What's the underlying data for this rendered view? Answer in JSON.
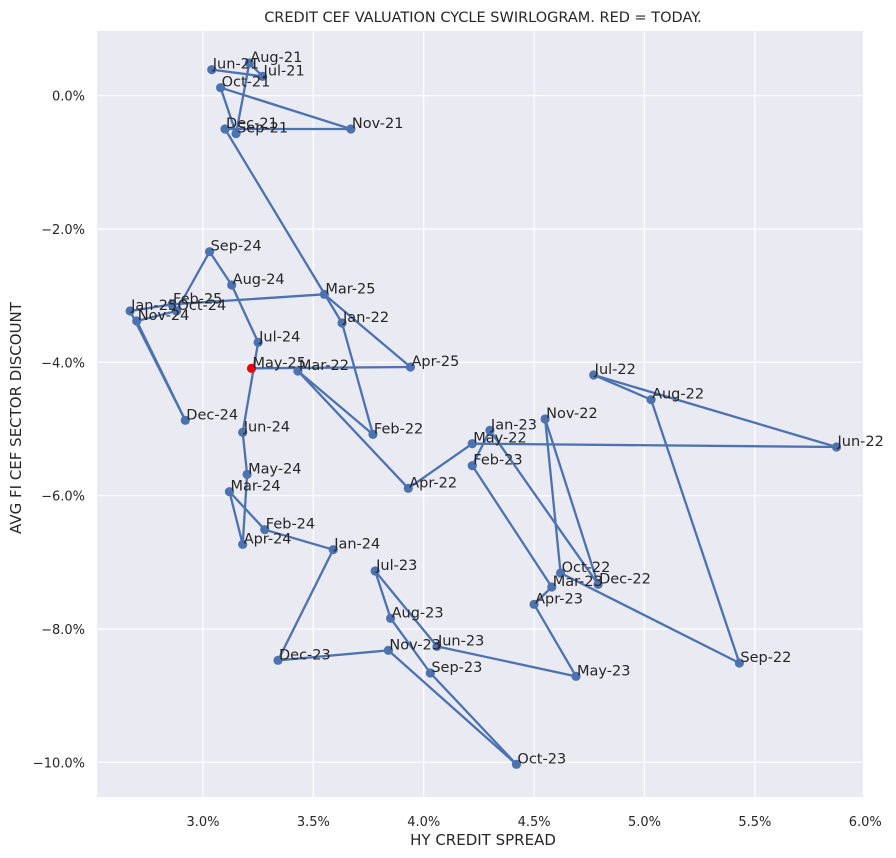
{
  "chart_data": {
    "type": "scatter",
    "title": "CREDIT CEF VALUATION CYCLE SWIRLOGRAM. RED = TODAY.",
    "xlabel": "HY CREDIT SPREAD",
    "ylabel": "AVG FI CEF SECTOR DISCOUNT",
    "xlim": [
      0.0252,
      0.0599
    ],
    "ylim": [
      -0.1052,
      0.0097
    ],
    "x_ticks": [
      0.03,
      0.035,
      0.04,
      0.045,
      0.05,
      0.055,
      0.06
    ],
    "x_tick_labels": [
      "3.0%",
      "3.5%",
      "4.0%",
      "4.5%",
      "5.0%",
      "5.5%",
      "6.0%"
    ],
    "y_ticks": [
      0.0,
      -0.02,
      -0.04,
      -0.06,
      -0.08,
      -0.1
    ],
    "y_tick_labels": [
      "0.0%",
      "−2.0%",
      "−4.0%",
      "−6.0%",
      "−8.0%",
      "−10.0%"
    ],
    "grid": true,
    "series_color": "#4c72b0",
    "highlight_color": "#e8000b",
    "background_color": "#eaeaf2",
    "points": [
      {
        "label": "Jun-21",
        "x": 0.0304,
        "y": 0.0039
      },
      {
        "label": "Jul-21",
        "x": 0.0327,
        "y": 0.0029
      },
      {
        "label": "Aug-21",
        "x": 0.0321,
        "y": 0.0049
      },
      {
        "label": "Sep-21",
        "x": 0.0315,
        "y": -0.0057
      },
      {
        "label": "Oct-21",
        "x": 0.0308,
        "y": 0.0012
      },
      {
        "label": "Nov-21",
        "x": 0.0367,
        "y": -0.005
      },
      {
        "label": "Dec-21",
        "x": 0.031,
        "y": -0.005
      },
      {
        "label": "Jan-22",
        "x": 0.0363,
        "y": -0.0341
      },
      {
        "label": "Feb-22",
        "x": 0.0377,
        "y": -0.0508
      },
      {
        "label": "Mar-22",
        "x": 0.0343,
        "y": -0.0413
      },
      {
        "label": "Apr-22",
        "x": 0.0393,
        "y": -0.0589
      },
      {
        "label": "May-22",
        "x": 0.0422,
        "y": -0.0522
      },
      {
        "label": "Jun-22",
        "x": 0.0587,
        "y": -0.0527
      },
      {
        "label": "Jul-22",
        "x": 0.0477,
        "y": -0.0419
      },
      {
        "label": "Aug-22",
        "x": 0.0503,
        "y": -0.0456
      },
      {
        "label": "Sep-22",
        "x": 0.0543,
        "y": -0.0851
      },
      {
        "label": "Oct-22",
        "x": 0.0462,
        "y": -0.0716
      },
      {
        "label": "Nov-22",
        "x": 0.0455,
        "y": -0.0485
      },
      {
        "label": "Dec-22",
        "x": 0.0479,
        "y": -0.0733
      },
      {
        "label": "Jan-23",
        "x": 0.043,
        "y": -0.0502
      },
      {
        "label": "Feb-23",
        "x": 0.0422,
        "y": -0.0555
      },
      {
        "label": "Mar-23",
        "x": 0.0458,
        "y": -0.0737
      },
      {
        "label": "Apr-23",
        "x": 0.045,
        "y": -0.0763
      },
      {
        "label": "May-23",
        "x": 0.0469,
        "y": -0.0871
      },
      {
        "label": "Jun-23",
        "x": 0.0406,
        "y": -0.0826
      },
      {
        "label": "Jul-23",
        "x": 0.0378,
        "y": -0.0713
      },
      {
        "label": "Aug-23",
        "x": 0.0385,
        "y": -0.0784
      },
      {
        "label": "Sep-23",
        "x": 0.0403,
        "y": -0.0866
      },
      {
        "label": "Oct-23",
        "x": 0.0442,
        "y": -0.1003
      },
      {
        "label": "Nov-23",
        "x": 0.0384,
        "y": -0.0832
      },
      {
        "label": "Dec-23",
        "x": 0.0334,
        "y": -0.0847
      },
      {
        "label": "Jan-24",
        "x": 0.0359,
        "y": -0.0681
      },
      {
        "label": "Feb-24",
        "x": 0.0328,
        "y": -0.0651
      },
      {
        "label": "Mar-24",
        "x": 0.0312,
        "y": -0.0594
      },
      {
        "label": "Apr-24",
        "x": 0.0318,
        "y": -0.0673
      },
      {
        "label": "May-24",
        "x": 0.032,
        "y": -0.0568
      },
      {
        "label": "Jun-24",
        "x": 0.0318,
        "y": -0.0505
      },
      {
        "label": "Jul-24",
        "x": 0.0325,
        "y": -0.037
      },
      {
        "label": "Aug-24",
        "x": 0.0313,
        "y": -0.0284
      },
      {
        "label": "Sep-24",
        "x": 0.0303,
        "y": -0.0234
      },
      {
        "label": "Oct-24",
        "x": 0.0288,
        "y": -0.0323
      },
      {
        "label": "Nov-24",
        "x": 0.027,
        "y": -0.0338
      },
      {
        "label": "Dec-24",
        "x": 0.0292,
        "y": -0.0487
      },
      {
        "label": "Jan-25",
        "x": 0.0267,
        "y": -0.0323
      },
      {
        "label": "Feb-25",
        "x": 0.0286,
        "y": -0.0313
      },
      {
        "label": "Mar-25",
        "x": 0.0355,
        "y": -0.0298
      },
      {
        "label": "Apr-25",
        "x": 0.0394,
        "y": -0.0407
      },
      {
        "label": "May-25",
        "x": 0.0322,
        "y": -0.0409,
        "highlight": true
      }
    ]
  }
}
